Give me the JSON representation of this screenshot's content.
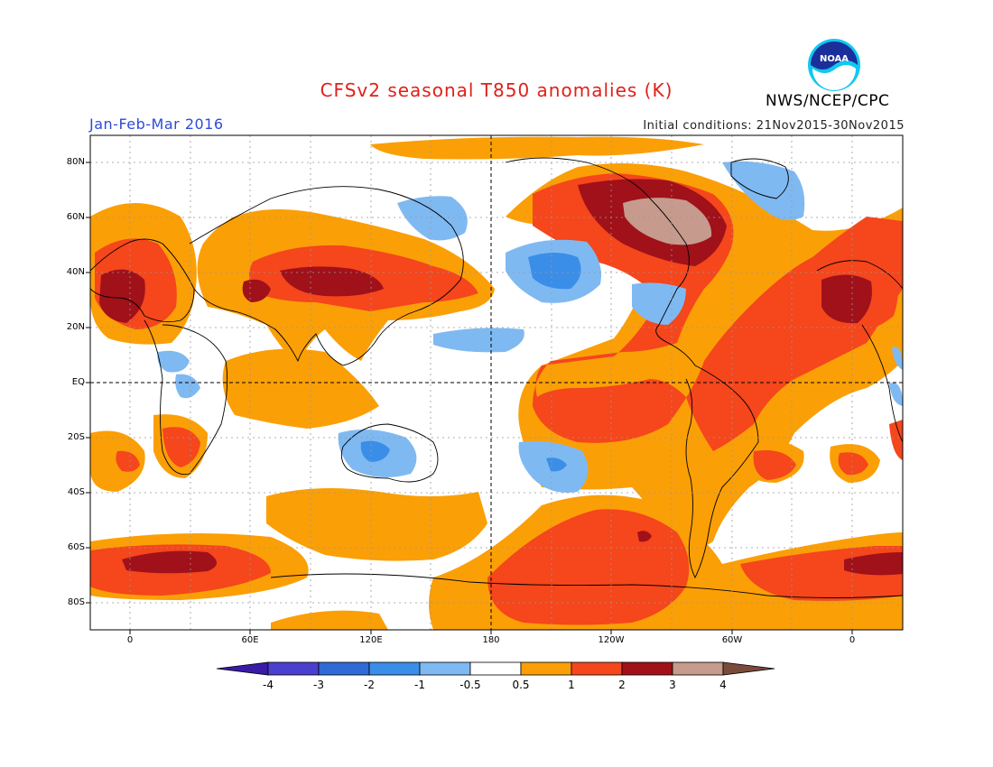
{
  "header": {
    "title": "CFSv2 seasonal T850 anomalies (K)",
    "season": "Jan-Feb-Mar 2016",
    "initial_conditions": "Initial conditions: 21Nov2015-30Nov2015",
    "agency": "NWS/NCEP/CPC",
    "logo_text": "NOAA"
  },
  "map": {
    "lat_labels": [
      "80N",
      "60N",
      "40N",
      "20N",
      "EQ",
      "20S",
      "40S",
      "60S",
      "80S"
    ],
    "lon_labels": [
      "0",
      "60E",
      "120E",
      "180",
      "120W",
      "60W",
      "0"
    ]
  },
  "colorbar": {
    "labels": [
      "-4",
      "-3",
      "-2",
      "-1",
      "-0.5",
      "0.5",
      "1",
      "2",
      "3",
      "4"
    ],
    "colors": [
      "#3a1aa8",
      "#4b3fd0",
      "#2f6ad6",
      "#3a8ee8",
      "#7fb9f2",
      "#ffffff",
      "#fb9f06",
      "#f5461c",
      "#a0111a",
      "#c69a8c",
      "#7a4a3a"
    ]
  }
}
